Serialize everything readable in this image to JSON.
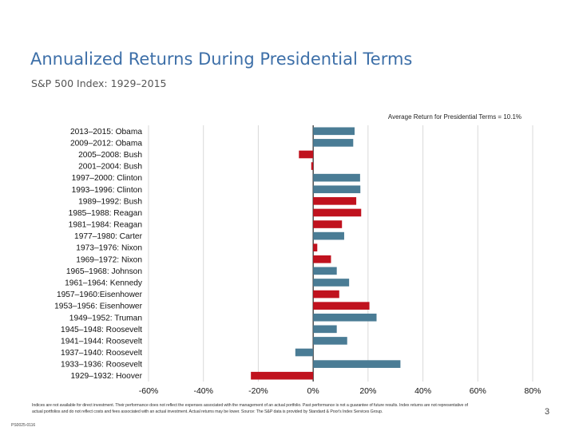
{
  "slide": {
    "title": "Annualized Returns During Presidential Terms",
    "subtitle": "S&P 500 Index: 1929–2015",
    "footnote": "Indices are not available for direct investment. Their performance does not reflect the expenses associated with the management of an actual portfolio. Past performance is not a guarantee of future results. Index returns are not representative of actual portfolios and do not reflect costs and fees associated with an actual investment. Actual returns may be lower.  Source: The S&P data is provided by Standard & Poor's Index Services Group.",
    "page_number": "3",
    "doc_code": "PS0025-0116"
  },
  "chart_data": {
    "type": "bar",
    "orientation": "horizontal",
    "title": "",
    "annotation": "Average Return for Presidential Terms = 10.1%",
    "xlim": [
      -60,
      80
    ],
    "ticks": [
      -60,
      -40,
      -20,
      0,
      20,
      40,
      60,
      80
    ],
    "tick_labels": [
      "-60%",
      "-40%",
      "-20%",
      "0%",
      "20%",
      "40%",
      "60%",
      "80%"
    ],
    "grid": true,
    "categories": [
      "2013–2015: Obama",
      "2009–2012: Obama",
      "2005–2008: Bush",
      "2001–2004: Bush",
      "1997–2000: Clinton",
      "1993–1996: Clinton",
      "1989–1992: Bush",
      "1985–1988: Reagan",
      "1981–1984: Reagan",
      "1977–1980: Carter",
      "1973–1976: Nixon",
      "1969–1972: Nixon",
      "1965–1968: Johnson",
      "1961–1964: Kennedy",
      "1957–1960:Eisenhower",
      "1953–1956: Eisenhower",
      "1949–1952: Truman",
      "1945–1948: Roosevelt",
      "1941–1944: Roosevelt",
      "1937–1940: Roosevelt",
      "1933–1936: Roosevelt",
      "1929–1932: Hoover"
    ],
    "values": [
      15.1,
      14.6,
      -5.2,
      -0.7,
      17.1,
      17.2,
      15.7,
      17.5,
      10.5,
      11.3,
      1.5,
      6.5,
      8.6,
      13.1,
      9.5,
      20.5,
      23.1,
      8.6,
      12.4,
      -6.5,
      31.8,
      -22.7
    ],
    "party": [
      "D",
      "D",
      "R",
      "R",
      "D",
      "D",
      "R",
      "R",
      "R",
      "D",
      "R",
      "R",
      "D",
      "D",
      "R",
      "R",
      "D",
      "D",
      "D",
      "D",
      "D",
      "R"
    ],
    "colors": {
      "D": "#4a7c95",
      "R": "#c0121e"
    },
    "grid_color": "#d9d9d9",
    "axis_color": "#222222"
  }
}
